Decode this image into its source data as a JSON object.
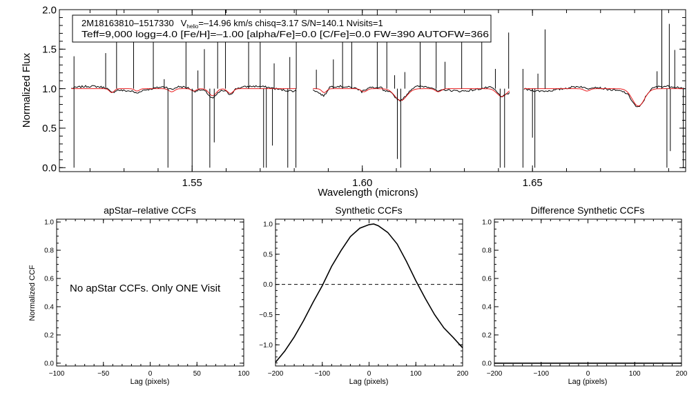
{
  "colors": {
    "observed": "#000000",
    "model": "#e8191b",
    "axis": "#000000",
    "background": "#ffffff"
  },
  "chart_data": [
    {
      "type": "line",
      "panel": "spectrum",
      "xlabel": "Wavelength (microns)",
      "ylabel": "Normalized Flux",
      "xlim": [
        1.511,
        1.695
      ],
      "ylim": [
        -0.05,
        2.0
      ],
      "xticks": [
        1.55,
        1.6,
        1.65
      ],
      "xtick_labels": [
        "1.55",
        "1.60",
        "1.65"
      ],
      "yticks": [
        0.0,
        0.5,
        1.0,
        1.5,
        2.0
      ],
      "ytick_labels": [
        "0.0",
        "0.5",
        "1.0",
        "1.5",
        "2.0"
      ],
      "info_line1": {
        "star": "2M18163810–1517330",
        "v": "V",
        "v_sub": "helio",
        "rest": "=–14.96 km/s  chisq=3.17  S/N=140.1  Nvisits=1"
      },
      "info_line2": "Teff=9,000 logg=4.0 [Fe/H]=–1.00 [alpha/Fe]=0.0 [C/Fe]=0.0 FW=390 AUTOFW=366",
      "chips": [
        [
          1.5145,
          1.5808
        ],
        [
          1.5855,
          1.6435
        ],
        [
          1.6475,
          1.6945
        ]
      ],
      "lines": [
        {
          "center": 1.5264,
          "depth": 0.05,
          "width": 0.001
        },
        {
          "center": 1.5338,
          "depth": 0.03,
          "width": 0.001
        },
        {
          "center": 1.544,
          "depth": 0.04,
          "width": 0.0012
        },
        {
          "center": 1.5505,
          "depth": 0.03,
          "width": 0.001
        },
        {
          "center": 1.556,
          "depth": 0.09,
          "width": 0.0015
        },
        {
          "center": 1.5612,
          "depth": 0.06,
          "width": 0.0012
        },
        {
          "center": 1.5888,
          "depth": 0.05,
          "width": 0.001
        },
        {
          "center": 1.6005,
          "depth": 0.04,
          "width": 0.0012
        },
        {
          "center": 1.6113,
          "depth": 0.15,
          "width": 0.0025
        },
        {
          "center": 1.6223,
          "depth": 0.04,
          "width": 0.0012
        },
        {
          "center": 1.641,
          "depth": 0.1,
          "width": 0.002
        },
        {
          "center": 1.6811,
          "depth": 0.22,
          "width": 0.0025
        },
        {
          "center": 1.666,
          "depth": 0.03,
          "width": 0.0012
        }
      ],
      "spikes": [
        {
          "x": 1.5153,
          "y": 1.41
        },
        {
          "x": 1.5246,
          "y": 1.45
        },
        {
          "x": 1.5278,
          "y": 2.0
        },
        {
          "x": 1.5328,
          "y": 1.73
        },
        {
          "x": 1.5386,
          "y": 1.62
        },
        {
          "x": 1.5418,
          "y": 1.12
        },
        {
          "x": 1.5482,
          "y": 1.63
        },
        {
          "x": 1.5517,
          "y": 1.23
        },
        {
          "x": 1.5536,
          "y": 1.5
        },
        {
          "x": 1.5575,
          "y": 1.78
        },
        {
          "x": 1.5598,
          "y": 2.0
        },
        {
          "x": 1.5666,
          "y": 1.65
        },
        {
          "x": 1.57,
          "y": 1.92
        },
        {
          "x": 1.5741,
          "y": 1.32
        },
        {
          "x": 1.5787,
          "y": 1.4
        },
        {
          "x": 1.5806,
          "y": 2.0
        },
        {
          "x": 1.5865,
          "y": 1.24
        },
        {
          "x": 1.5915,
          "y": 1.37
        },
        {
          "x": 1.5942,
          "y": 1.7
        },
        {
          "x": 1.5969,
          "y": 1.6
        },
        {
          "x": 1.6044,
          "y": 2.0
        },
        {
          "x": 1.6072,
          "y": 1.83
        },
        {
          "x": 1.6095,
          "y": 1.17
        },
        {
          "x": 1.6125,
          "y": 1.21
        },
        {
          "x": 1.617,
          "y": 1.6
        },
        {
          "x": 1.6217,
          "y": 1.73
        },
        {
          "x": 1.6243,
          "y": 1.34
        },
        {
          "x": 1.6292,
          "y": 1.59
        },
        {
          "x": 1.6351,
          "y": 1.82
        },
        {
          "x": 1.6391,
          "y": 1.25
        },
        {
          "x": 1.643,
          "y": 1.71
        },
        {
          "x": 1.6472,
          "y": 1.25
        },
        {
          "x": 1.6516,
          "y": 1.19
        },
        {
          "x": 1.6537,
          "y": 1.75
        },
        {
          "x": 1.6866,
          "y": 1.22
        },
        {
          "x": 1.688,
          "y": 2.0
        },
        {
          "x": 1.6902,
          "y": 1.82
        },
        {
          "x": 1.6918,
          "y": 1.49
        }
      ],
      "dips": [
        {
          "x": 1.5153,
          "y": 0.0
        },
        {
          "x": 1.5429,
          "y": 0.0
        },
        {
          "x": 1.55,
          "y": 0.0
        },
        {
          "x": 1.5552,
          "y": 0.0
        },
        {
          "x": 1.5565,
          "y": 0.32
        },
        {
          "x": 1.571,
          "y": 0.0
        },
        {
          "x": 1.5718,
          "y": 0.0
        },
        {
          "x": 1.5736,
          "y": 0.28
        },
        {
          "x": 1.5781,
          "y": 0.0
        },
        {
          "x": 1.5805,
          "y": 0.0
        },
        {
          "x": 1.6103,
          "y": 0.11
        },
        {
          "x": 1.6113,
          "y": 0.0
        },
        {
          "x": 1.6405,
          "y": 0.0
        },
        {
          "x": 1.6418,
          "y": 0.0
        },
        {
          "x": 1.6472,
          "y": 0.0
        },
        {
          "x": 1.65,
          "y": 0.38
        },
        {
          "x": 1.6507,
          "y": 0.0
        },
        {
          "x": 1.6895,
          "y": 0.0
        },
        {
          "x": 1.6905,
          "y": 0.21
        },
        {
          "x": 1.6943,
          "y": 0.0
        }
      ]
    },
    {
      "type": "line",
      "panel": "ccf1",
      "title": "apStar–relative CCFs",
      "xlabel": "Lag (pixels)",
      "ylabel": "Normalized CCF",
      "xlim": [
        -100,
        100
      ],
      "ylim": [
        -0.02,
        1.02
      ],
      "xticks": [
        -100,
        -50,
        0,
        50,
        100
      ],
      "xtick_labels": [
        "−100",
        "−50",
        "0",
        "50",
        "100"
      ],
      "yticks": [
        0.0,
        0.2,
        0.4,
        0.6,
        0.8,
        1.0
      ],
      "ytick_labels": [
        "0.0",
        "0.2",
        "0.4",
        "0.6",
        "0.8",
        "1.0"
      ],
      "annotation": "No apStar CCFs.  Only ONE Visit",
      "series": []
    },
    {
      "type": "line",
      "panel": "ccf2",
      "title": "Synthetic CCFs",
      "xlabel": "Lag (pixels)",
      "xlim": [
        -200,
        200
      ],
      "ylim": [
        -1.35,
        1.08
      ],
      "xticks": [
        -200,
        -100,
        0,
        100,
        200
      ],
      "xtick_labels": [
        "−200",
        "−100",
        "0",
        "100",
        "200"
      ],
      "yticks": [
        -1.0,
        -0.5,
        0.0,
        0.5,
        1.0
      ],
      "ytick_labels": [
        "−1.0",
        "−0.5",
        "0.0",
        "0.5",
        "1.0"
      ],
      "hline": 0.0,
      "series": [
        {
          "name": "Synthetic CCF",
          "x": [
            -200,
            -180,
            -160,
            -140,
            -120,
            -100,
            -80,
            -60,
            -40,
            -20,
            0,
            10,
            20,
            40,
            60,
            80,
            100,
            120,
            140,
            160,
            180,
            200
          ],
          "y": [
            -1.29,
            -1.1,
            -0.87,
            -0.6,
            -0.3,
            -0.02,
            0.3,
            0.56,
            0.79,
            0.93,
            0.99,
            1.0,
            0.97,
            0.86,
            0.67,
            0.38,
            0.06,
            -0.23,
            -0.5,
            -0.72,
            -0.88,
            -1.05
          ]
        }
      ]
    },
    {
      "type": "line",
      "panel": "ccf3",
      "title": "Difference Synthetic CCFs",
      "xlabel": "Lag (pixels)",
      "xlim": [
        -200,
        200
      ],
      "ylim": [
        -0.02,
        1.02
      ],
      "xticks": [
        -200,
        -100,
        0,
        100,
        200
      ],
      "xtick_labels": [
        "−200",
        "−100",
        "0",
        "100",
        "200"
      ],
      "yticks": [
        0.0,
        0.2,
        0.4,
        0.6,
        0.8,
        1.0
      ],
      "ytick_labels": [
        "0.0",
        "0.2",
        "0.4",
        "0.6",
        "0.8",
        "1.0"
      ],
      "series": [
        {
          "name": "Difference",
          "x": [
            -200,
            200
          ],
          "y": [
            0.0,
            0.0
          ]
        }
      ]
    }
  ]
}
